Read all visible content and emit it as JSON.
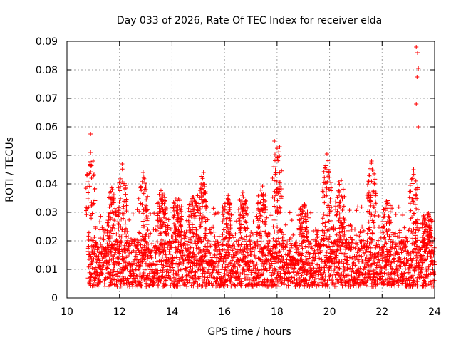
{
  "chart_data": {
    "type": "scatter",
    "title": "Day 033 of 2026, Rate Of TEC Index for receiver elda",
    "xlabel": "GPS time / hours",
    "ylabel": "ROTI / TECUs",
    "xlim": [
      10,
      24
    ],
    "ylim": [
      0,
      0.09
    ],
    "xticks": [
      10,
      12,
      14,
      16,
      18,
      20,
      22,
      24
    ],
    "xtick_labels": [
      "10",
      "12",
      "14",
      "16",
      "18",
      "20",
      "22",
      "24"
    ],
    "yticks": [
      0,
      0.01,
      0.02,
      0.03,
      0.04,
      0.05,
      0.06,
      0.07,
      0.08,
      0.09
    ],
    "ytick_labels": [
      "0",
      "0.01",
      "0.02",
      "0.03",
      "0.04",
      "0.05",
      "0.06",
      "0.07",
      "0.08",
      "0.09"
    ],
    "grid": true,
    "marker": "+",
    "color": "#ff0000",
    "x_range_of_data": [
      10.8,
      24.0
    ],
    "notable_points": [
      {
        "x": 10.9,
        "y": 0.0575
      },
      {
        "x": 10.9,
        "y": 0.051
      },
      {
        "x": 11.0,
        "y": 0.048
      },
      {
        "x": 12.1,
        "y": 0.047
      },
      {
        "x": 12.9,
        "y": 0.044
      },
      {
        "x": 15.2,
        "y": 0.044
      },
      {
        "x": 17.9,
        "y": 0.055
      },
      {
        "x": 18.1,
        "y": 0.053
      },
      {
        "x": 19.9,
        "y": 0.0505
      },
      {
        "x": 21.6,
        "y": 0.048
      },
      {
        "x": 23.3,
        "y": 0.088
      },
      {
        "x": 23.35,
        "y": 0.086
      },
      {
        "x": 23.38,
        "y": 0.0805
      },
      {
        "x": 23.33,
        "y": 0.0775
      },
      {
        "x": 23.3,
        "y": 0.068
      },
      {
        "x": 23.38,
        "y": 0.06
      },
      {
        "x": 23.2,
        "y": 0.045
      }
    ],
    "band": {
      "typical_min": 0.004,
      "typical_max": 0.02,
      "center": 0.011
    },
    "spike_clusters": [
      {
        "x": 10.9,
        "peak": 0.05
      },
      {
        "x": 11.7,
        "peak": 0.039
      },
      {
        "x": 12.1,
        "peak": 0.046
      },
      {
        "x": 12.9,
        "peak": 0.044
      },
      {
        "x": 13.6,
        "peak": 0.039
      },
      {
        "x": 14.2,
        "peak": 0.038
      },
      {
        "x": 14.8,
        "peak": 0.037
      },
      {
        "x": 15.15,
        "peak": 0.044
      },
      {
        "x": 16.1,
        "peak": 0.037
      },
      {
        "x": 16.7,
        "peak": 0.038
      },
      {
        "x": 17.4,
        "peak": 0.042
      },
      {
        "x": 18.0,
        "peak": 0.055
      },
      {
        "x": 19.0,
        "peak": 0.034
      },
      {
        "x": 19.9,
        "peak": 0.05
      },
      {
        "x": 20.4,
        "peak": 0.043
      },
      {
        "x": 21.6,
        "peak": 0.048
      },
      {
        "x": 22.2,
        "peak": 0.036
      },
      {
        "x": 23.2,
        "peak": 0.045
      },
      {
        "x": 23.7,
        "peak": 0.031
      }
    ]
  }
}
